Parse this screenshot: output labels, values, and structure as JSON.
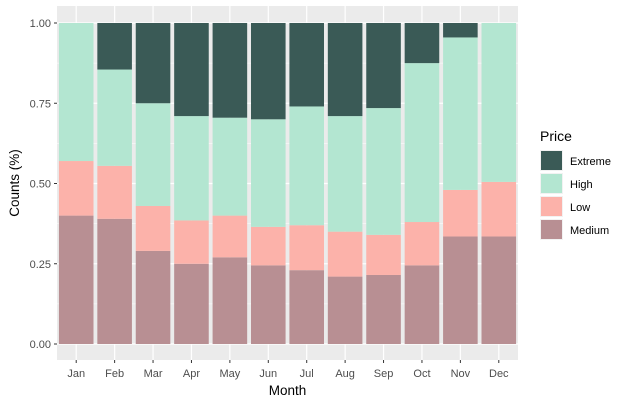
{
  "chart_data": {
    "type": "bar",
    "stacked": true,
    "normalized": true,
    "categories": [
      "Jan",
      "Feb",
      "Mar",
      "Apr",
      "May",
      "Jun",
      "Jul",
      "Aug",
      "Sep",
      "Oct",
      "Nov",
      "Dec"
    ],
    "series": [
      {
        "name": "Medium",
        "color": "#b88f93",
        "values": [
          0.4,
          0.39,
          0.29,
          0.25,
          0.27,
          0.245,
          0.23,
          0.21,
          0.215,
          0.245,
          0.335,
          0.335
        ]
      },
      {
        "name": "Low",
        "color": "#fcb2aa",
        "values": [
          0.17,
          0.165,
          0.14,
          0.135,
          0.13,
          0.12,
          0.14,
          0.14,
          0.125,
          0.135,
          0.145,
          0.17
        ]
      },
      {
        "name": "High",
        "color": "#b3e6d1",
        "values": [
          0.43,
          0.3,
          0.32,
          0.325,
          0.305,
          0.335,
          0.37,
          0.36,
          0.395,
          0.495,
          0.475,
          0.495
        ]
      },
      {
        "name": "Extreme",
        "color": "#3a5a56",
        "values": [
          0.0,
          0.145,
          0.25,
          0.29,
          0.295,
          0.3,
          0.26,
          0.29,
          0.265,
          0.125,
          0.045,
          0.0
        ]
      }
    ],
    "xlabel": "Month",
    "ylabel": "Counts (%)",
    "ylim": [
      0,
      1
    ],
    "yticks": [
      "0.00",
      "0.25",
      "0.50",
      "0.75",
      "1.00"
    ],
    "grid": true,
    "panel_background": "#ebebeb",
    "legend": {
      "title": "Price",
      "position": "right",
      "order": [
        "Extreme",
        "High",
        "Low",
        "Medium"
      ]
    }
  }
}
